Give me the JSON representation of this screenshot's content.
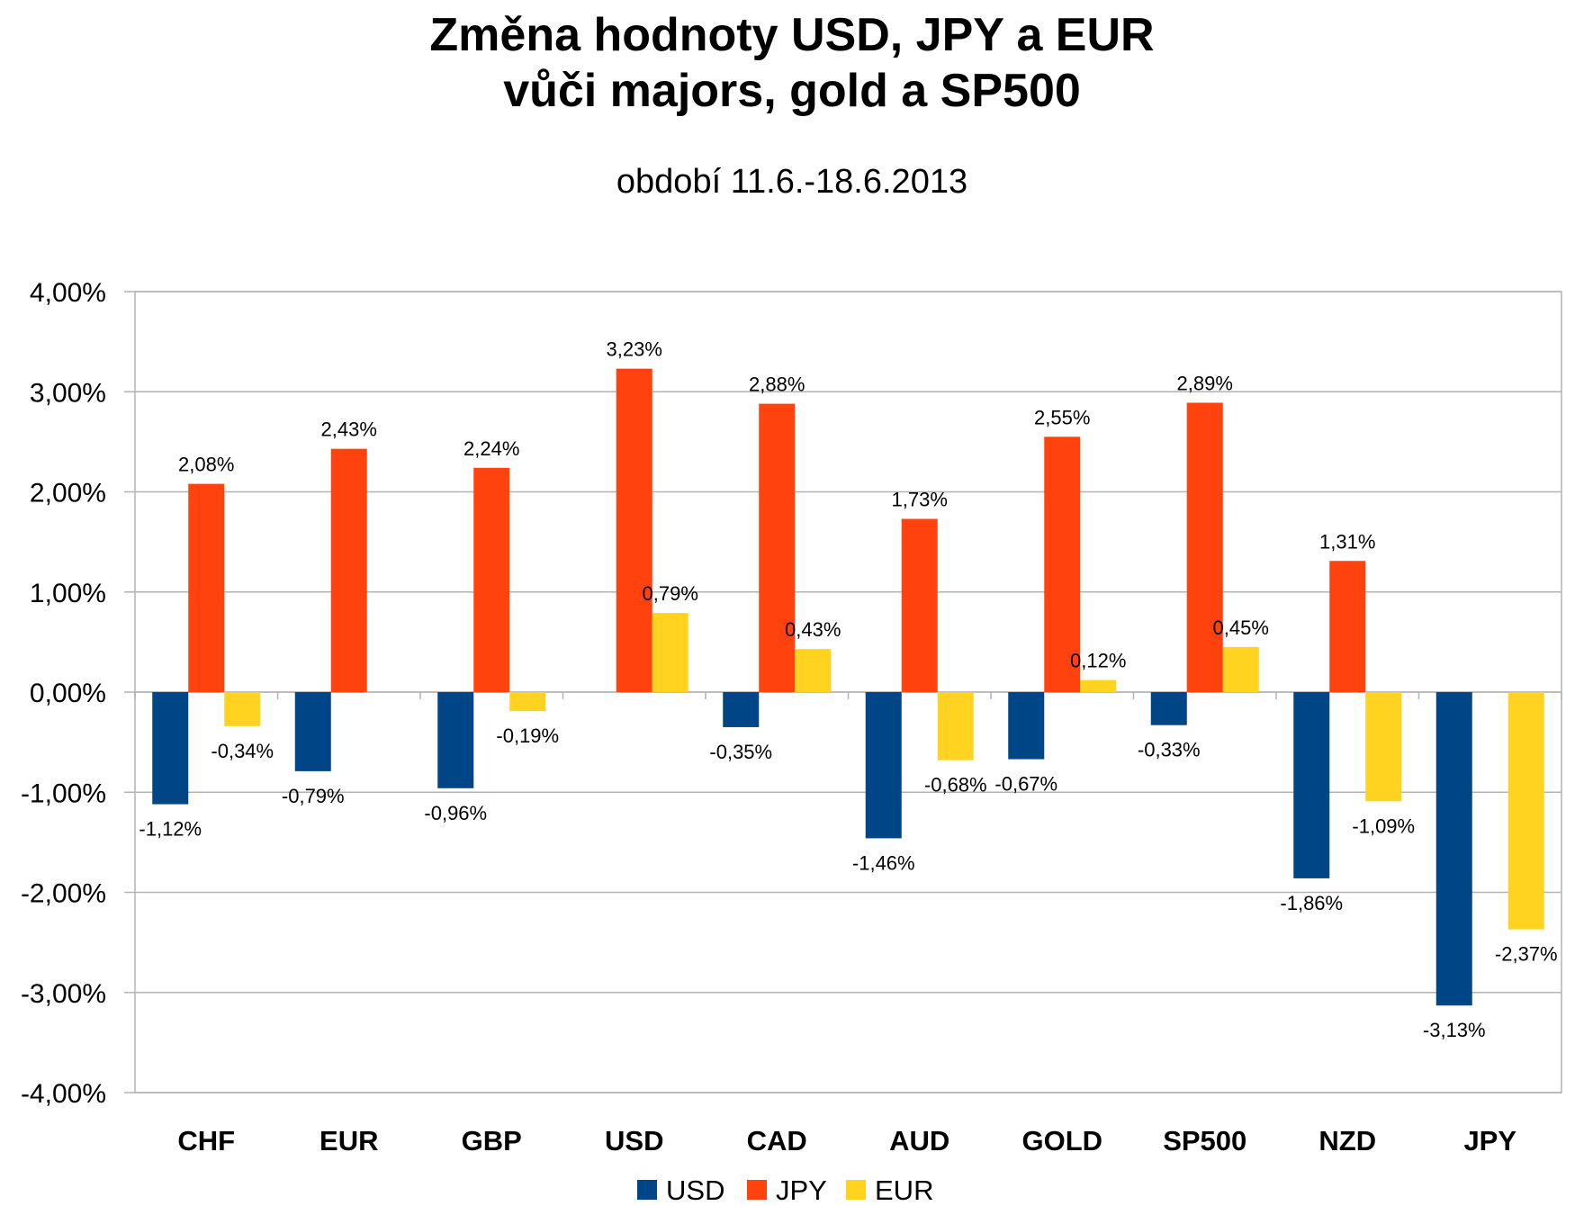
{
  "chart_data": {
    "type": "bar",
    "title": [
      "Změna hodnoty USD, JPY a EUR",
      "vůči majors, gold a SP500"
    ],
    "subtitle": "období 11.6.-18.6.2013",
    "categories": [
      "CHF",
      "EUR",
      "GBP",
      "USD",
      "CAD",
      "AUD",
      "GOLD",
      "SP500",
      "NZD",
      "JPY"
    ],
    "series": [
      {
        "name": "USD",
        "color": "#004586",
        "values": [
          -1.12,
          -0.79,
          -0.96,
          null,
          -0.35,
          -1.46,
          -0.67,
          -0.33,
          -1.86,
          -3.13
        ],
        "labels": [
          "-1,12%",
          "-0,79%",
          "-0,96%",
          "",
          "-0,35%",
          "-1,46%",
          "-0,67%",
          "-0,33%",
          "-1,86%",
          "-3,13%"
        ]
      },
      {
        "name": "JPY",
        "color": "#ff420e",
        "values": [
          2.08,
          2.43,
          2.24,
          3.23,
          2.88,
          1.73,
          2.55,
          2.89,
          1.31,
          null
        ],
        "labels": [
          "2,08%",
          "2,43%",
          "2,24%",
          "3,23%",
          "2,88%",
          "1,73%",
          "2,55%",
          "2,89%",
          "1,31%",
          ""
        ]
      },
      {
        "name": "EUR",
        "color": "#ffd320",
        "values": [
          -0.34,
          null,
          -0.19,
          0.79,
          0.43,
          -0.68,
          0.12,
          0.45,
          -1.09,
          -2.37
        ],
        "labels": [
          "-0,34%",
          "",
          "-0,19%",
          "0,79%",
          "0,43%",
          "-0,68%",
          "0,12%",
          "0,45%",
          "-1,09%",
          "-2,37%"
        ]
      }
    ],
    "y_ticks": [
      "4,00%",
      "3,00%",
      "2,00%",
      "1,00%",
      "0,00%",
      "-1,00%",
      "-2,00%",
      "-3,00%",
      "-4,00%"
    ],
    "ylim": [
      -4,
      4
    ],
    "grid": true,
    "legend_position": "bottom"
  }
}
